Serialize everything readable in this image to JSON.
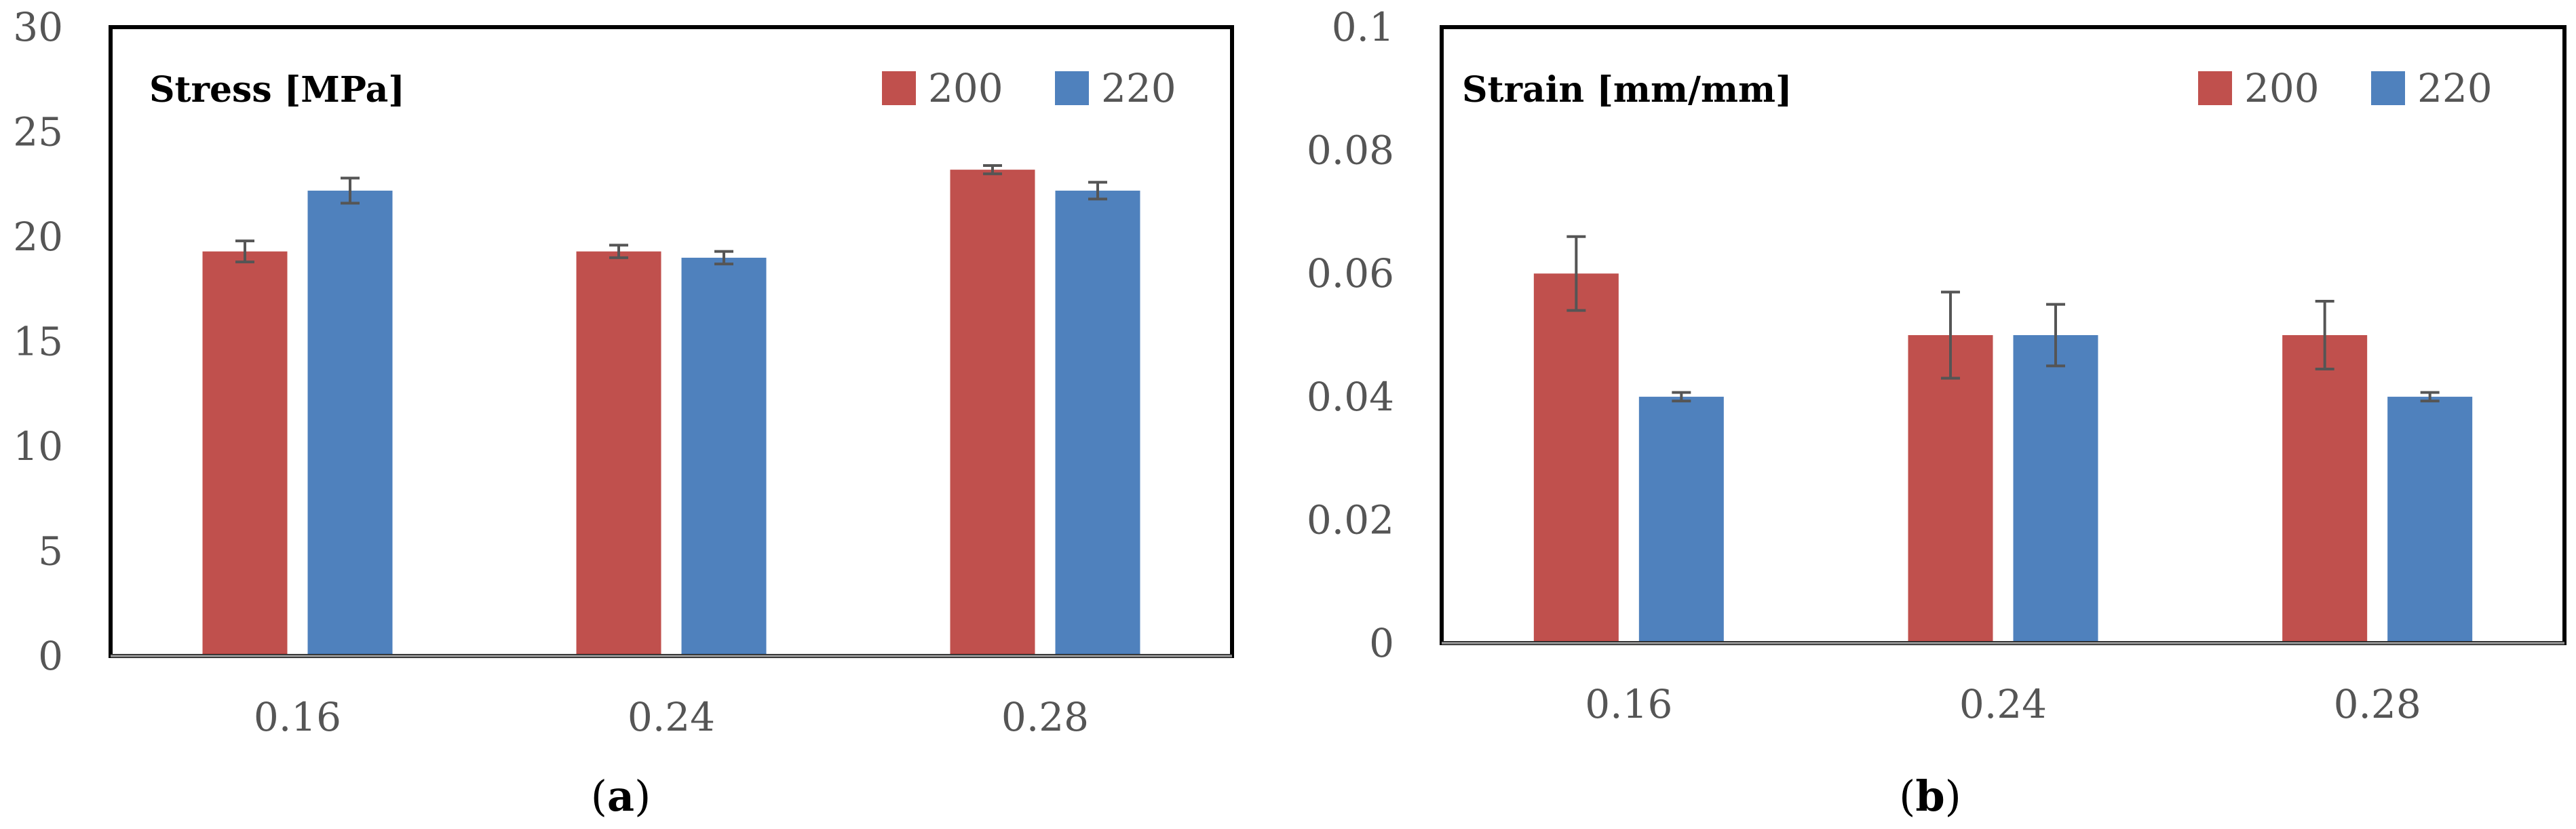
{
  "colors": {
    "s200": "#C0504D",
    "s220": "#4F81BD",
    "error": "#555555",
    "frame": "#000000"
  },
  "chart_data": [
    {
      "type": "bar",
      "title": "Stress [MPa]",
      "caption_open": "(",
      "caption_letter": "a",
      "caption_close": ")",
      "categories": [
        "0.16",
        "0.24",
        "0.28"
      ],
      "ylim": [
        0,
        30
      ],
      "yticks": [
        "0",
        "5",
        "10",
        "15",
        "20",
        "25",
        "30"
      ],
      "ytick_values": [
        0,
        5,
        10,
        15,
        20,
        25,
        30
      ],
      "legend_position": "top-right",
      "series": [
        {
          "name": "200",
          "values": [
            19.3,
            19.3,
            23.2
          ],
          "errors": [
            0.5,
            0.3,
            0.2
          ]
        },
        {
          "name": "220",
          "values": [
            22.2,
            19.0,
            22.2
          ],
          "errors": [
            0.6,
            0.3,
            0.4
          ]
        }
      ]
    },
    {
      "type": "bar",
      "title": "Strain [mm/mm]",
      "caption_open": "(",
      "caption_letter": "b",
      "caption_close": ")",
      "categories": [
        "0.16",
        "0.24",
        "0.28"
      ],
      "ylim": [
        0,
        0.1
      ],
      "yticks": [
        "0",
        "0.02",
        "0.04",
        "0.06",
        "0.08",
        "0.1"
      ],
      "ytick_values": [
        0,
        0.02,
        0.04,
        0.06,
        0.08,
        0.1
      ],
      "legend_position": "top-right",
      "series": [
        {
          "name": "200",
          "values": [
            0.06,
            0.05,
            0.05
          ],
          "errors": [
            0.006,
            0.007,
            0.0055
          ]
        },
        {
          "name": "220",
          "values": [
            0.04,
            0.05,
            0.04
          ],
          "errors": [
            0.0007,
            0.005,
            0.0007
          ]
        }
      ]
    }
  ]
}
